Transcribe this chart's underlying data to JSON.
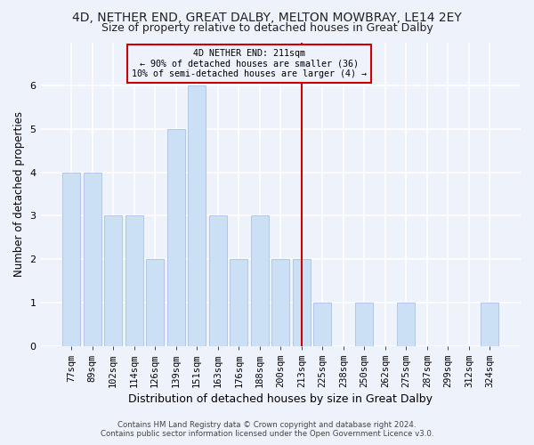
{
  "title": "4D, NETHER END, GREAT DALBY, MELTON MOWBRAY, LE14 2EY",
  "subtitle": "Size of property relative to detached houses in Great Dalby",
  "xlabel": "Distribution of detached houses by size in Great Dalby",
  "ylabel": "Number of detached properties",
  "categories": [
    "77sqm",
    "89sqm",
    "102sqm",
    "114sqm",
    "126sqm",
    "139sqm",
    "151sqm",
    "163sqm",
    "176sqm",
    "188sqm",
    "200sqm",
    "213sqm",
    "225sqm",
    "238sqm",
    "250sqm",
    "262sqm",
    "275sqm",
    "287sqm",
    "299sqm",
    "312sqm",
    "324sqm"
  ],
  "values": [
    4,
    4,
    3,
    3,
    2,
    5,
    6,
    3,
    2,
    3,
    2,
    2,
    1,
    0,
    1,
    0,
    1,
    0,
    0,
    0,
    1
  ],
  "bar_color": "#cce0f5",
  "bar_edge_color": "#b0c8e8",
  "reference_line_x_label": "213sqm",
  "reference_line_color": "#cc0000",
  "annotation_text": "4D NETHER END: 211sqm\n← 90% of detached houses are smaller (36)\n10% of semi-detached houses are larger (4) →",
  "annotation_box_color": "#cc0000",
  "ylim": [
    0,
    7
  ],
  "yticks": [
    0,
    1,
    2,
    3,
    4,
    5,
    6
  ],
  "footer_line1": "Contains HM Land Registry data © Crown copyright and database right 2024.",
  "footer_line2": "Contains public sector information licensed under the Open Government Licence v3.0.",
  "background_color": "#eef2fb",
  "grid_color": "#ffffff",
  "title_fontsize": 10,
  "subtitle_fontsize": 9,
  "tick_fontsize": 7.5,
  "ylabel_fontsize": 8.5,
  "xlabel_fontsize": 9
}
